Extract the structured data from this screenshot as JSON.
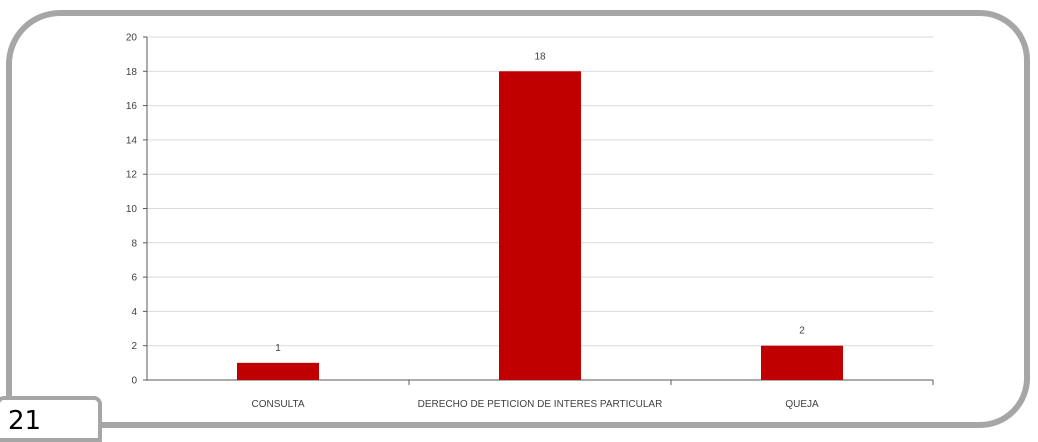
{
  "page": {
    "number": "21"
  },
  "colors": {
    "bar": "#c00000",
    "frame": "#a6a6a6",
    "grid": "#d9d9d9",
    "axis": "#595959"
  },
  "chart_data": {
    "type": "bar",
    "title": "",
    "xlabel": "",
    "ylabel": "",
    "categories": [
      "CONSULTA",
      "DERECHO DE PETICION DE INTERES PARTICULAR",
      "QUEJA"
    ],
    "values": [
      1,
      18,
      2
    ],
    "data_labels": [
      "1",
      "18",
      "2"
    ],
    "ylim": [
      0,
      20
    ],
    "yticks": [
      "0",
      "2",
      "4",
      "6",
      "8",
      "10",
      "12",
      "14",
      "16",
      "18",
      "20"
    ],
    "grid": true,
    "legend": "none"
  }
}
